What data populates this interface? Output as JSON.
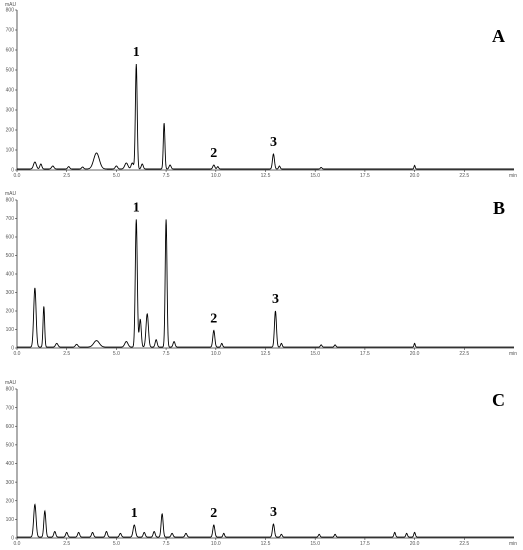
{
  "chart_data": [
    {
      "type": "line",
      "panel": "A",
      "ylabel": "mAU",
      "xlabel": "min",
      "xlim": [
        0,
        25
      ],
      "ylim": [
        0,
        800
      ],
      "xticks": [
        0.0,
        2.5,
        5.0,
        7.5,
        10.0,
        12.5,
        15.0,
        17.5,
        20.0,
        22.5
      ],
      "xtick_labels": [
        "0.0",
        "2.5",
        "5.0",
        "7.5",
        "10.0",
        "12.5",
        "15.0",
        "17.5",
        "20.0",
        "22.5"
      ],
      "yticks": [
        0,
        100,
        200,
        300,
        400,
        500,
        600,
        700,
        800
      ],
      "ytick_labels": [
        "0",
        "100",
        "200",
        "300",
        "400",
        "500",
        "600",
        "700",
        "800"
      ],
      "baseline": 5,
      "peaks": [
        {
          "t": 0.9,
          "h": 35,
          "w": 0.07
        },
        {
          "t": 1.2,
          "h": 25,
          "w": 0.05
        },
        {
          "t": 1.8,
          "h": 15,
          "w": 0.06
        },
        {
          "t": 2.6,
          "h": 12,
          "w": 0.05
        },
        {
          "t": 3.3,
          "h": 10,
          "w": 0.05
        },
        {
          "t": 4.0,
          "h": 80,
          "w": 0.14
        },
        {
          "t": 5.0,
          "h": 15,
          "w": 0.06
        },
        {
          "t": 5.5,
          "h": 30,
          "w": 0.08
        },
        {
          "t": 5.8,
          "h": 30,
          "w": 0.06
        },
        {
          "t": 6.0,
          "h": 525,
          "w": 0.045
        },
        {
          "t": 6.3,
          "h": 25,
          "w": 0.05
        },
        {
          "t": 7.4,
          "h": 230,
          "w": 0.04
        },
        {
          "t": 7.7,
          "h": 20,
          "w": 0.05
        },
        {
          "t": 9.9,
          "h": 20,
          "w": 0.05
        },
        {
          "t": 10.1,
          "h": 12,
          "w": 0.04
        },
        {
          "t": 12.9,
          "h": 75,
          "w": 0.05
        },
        {
          "t": 13.2,
          "h": 15,
          "w": 0.04
        },
        {
          "t": 15.3,
          "h": 8,
          "w": 0.04
        },
        {
          "t": 20.0,
          "h": 18,
          "w": 0.03
        }
      ],
      "annotations": [
        {
          "text": "1",
          "x": 6.0
        },
        {
          "text": "2",
          "x": 9.9
        },
        {
          "text": "3",
          "x": 12.9
        }
      ]
    },
    {
      "type": "line",
      "panel": "B",
      "ylabel": "mAU",
      "xlabel": "min",
      "xlim": [
        0,
        25
      ],
      "ylim": [
        0,
        800
      ],
      "xticks": [
        0.0,
        2.5,
        5.0,
        7.5,
        10.0,
        12.5,
        15.0,
        17.5,
        20.0,
        22.5
      ],
      "xtick_labels": [
        "0.0",
        "2.5",
        "5.0",
        "7.5",
        "10.0",
        "12.5",
        "15.0",
        "17.5",
        "20.0",
        "22.5"
      ],
      "yticks": [
        0,
        100,
        200,
        300,
        400,
        500,
        600,
        700,
        800
      ],
      "ytick_labels": [
        "0",
        "100",
        "200",
        "300",
        "400",
        "500",
        "600",
        "700",
        "800"
      ],
      "baseline": 5,
      "peaks": [
        {
          "t": 0.9,
          "h": 320,
          "w": 0.06
        },
        {
          "t": 1.35,
          "h": 220,
          "w": 0.04
        },
        {
          "t": 2.0,
          "h": 20,
          "w": 0.06
        },
        {
          "t": 3.0,
          "h": 15,
          "w": 0.06
        },
        {
          "t": 4.0,
          "h": 35,
          "w": 0.14
        },
        {
          "t": 5.5,
          "h": 30,
          "w": 0.08
        },
        {
          "t": 6.0,
          "h": 690,
          "w": 0.05
        },
        {
          "t": 6.2,
          "h": 150,
          "w": 0.05
        },
        {
          "t": 6.55,
          "h": 180,
          "w": 0.06
        },
        {
          "t": 7.0,
          "h": 40,
          "w": 0.05
        },
        {
          "t": 7.5,
          "h": 690,
          "w": 0.045
        },
        {
          "t": 7.9,
          "h": 30,
          "w": 0.05
        },
        {
          "t": 9.9,
          "h": 90,
          "w": 0.05
        },
        {
          "t": 10.3,
          "h": 20,
          "w": 0.04
        },
        {
          "t": 13.0,
          "h": 195,
          "w": 0.05
        },
        {
          "t": 13.3,
          "h": 20,
          "w": 0.04
        },
        {
          "t": 15.3,
          "h": 12,
          "w": 0.04
        },
        {
          "t": 16.0,
          "h": 12,
          "w": 0.04
        },
        {
          "t": 20.0,
          "h": 20,
          "w": 0.03
        }
      ],
      "annotations": [
        {
          "text": "1",
          "x": 6.0
        },
        {
          "text": "2",
          "x": 9.9
        },
        {
          "text": "3",
          "x": 13.0
        }
      ]
    },
    {
      "type": "line",
      "panel": "C",
      "ylabel": "mAU",
      "xlabel": "min",
      "xlim": [
        0,
        25
      ],
      "ylim": [
        0,
        800
      ],
      "xticks": [
        0.0,
        2.5,
        5.0,
        7.5,
        10.0,
        12.5,
        15.0,
        17.5,
        20.0,
        22.5
      ],
      "xtick_labels": [
        "0.0",
        "2.5",
        "5.0",
        "7.5",
        "10.0",
        "12.5",
        "15.0",
        "17.5",
        "20.0",
        "22.5"
      ],
      "yticks": [
        0,
        100,
        200,
        300,
        400,
        500,
        600,
        700,
        800
      ],
      "ytick_labels": [
        "0",
        "100",
        "200",
        "300",
        "400",
        "500",
        "600",
        "700",
        "800"
      ],
      "baseline": 5,
      "peaks": [
        {
          "t": 0.9,
          "h": 175,
          "w": 0.06
        },
        {
          "t": 1.4,
          "h": 140,
          "w": 0.05
        },
        {
          "t": 1.9,
          "h": 30,
          "w": 0.05
        },
        {
          "t": 2.5,
          "h": 25,
          "w": 0.05
        },
        {
          "t": 3.1,
          "h": 25,
          "w": 0.05
        },
        {
          "t": 3.8,
          "h": 25,
          "w": 0.05
        },
        {
          "t": 4.5,
          "h": 30,
          "w": 0.05
        },
        {
          "t": 5.2,
          "h": 20,
          "w": 0.05
        },
        {
          "t": 5.9,
          "h": 65,
          "w": 0.06
        },
        {
          "t": 6.4,
          "h": 25,
          "w": 0.05
        },
        {
          "t": 6.9,
          "h": 30,
          "w": 0.05
        },
        {
          "t": 7.3,
          "h": 125,
          "w": 0.05
        },
        {
          "t": 7.8,
          "h": 20,
          "w": 0.05
        },
        {
          "t": 8.5,
          "h": 20,
          "w": 0.05
        },
        {
          "t": 9.9,
          "h": 65,
          "w": 0.05
        },
        {
          "t": 10.4,
          "h": 20,
          "w": 0.04
        },
        {
          "t": 12.9,
          "h": 70,
          "w": 0.05
        },
        {
          "t": 13.3,
          "h": 15,
          "w": 0.04
        },
        {
          "t": 15.2,
          "h": 15,
          "w": 0.04
        },
        {
          "t": 16.0,
          "h": 15,
          "w": 0.04
        },
        {
          "t": 19.0,
          "h": 25,
          "w": 0.04
        },
        {
          "t": 19.6,
          "h": 20,
          "w": 0.04
        },
        {
          "t": 20.0,
          "h": 25,
          "w": 0.04
        }
      ],
      "annotations": [
        {
          "text": "1",
          "x": 5.9
        },
        {
          "text": "2",
          "x": 9.9
        },
        {
          "text": "3",
          "x": 12.9
        }
      ]
    }
  ]
}
